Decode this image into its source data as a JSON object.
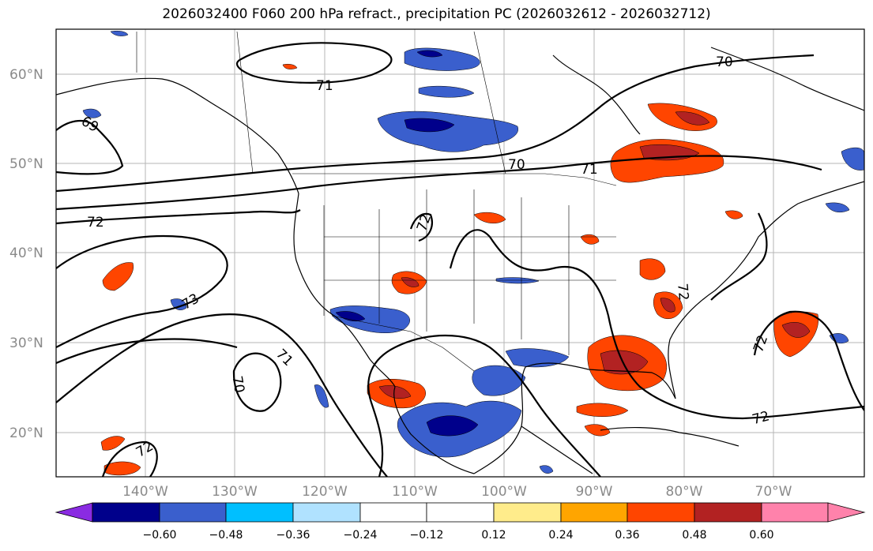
{
  "title": "2026032400 F060 200 hPa refract., precipitation PC (2026032612 - 2026032712)",
  "map": {
    "lat_ticks": [
      "60°N",
      "50°N",
      "40°N",
      "30°N",
      "20°N"
    ],
    "lon_ticks": [
      "140°W",
      "130°W",
      "120°W",
      "110°W",
      "100°W",
      "90°W",
      "80°W",
      "70°W"
    ],
    "contour_labels": [
      "71",
      "70",
      "69",
      "70",
      "71",
      "72",
      "72",
      "73",
      "71",
      "70",
      "72",
      "72",
      "72",
      "72"
    ]
  },
  "colorbar": {
    "colors": [
      "#8a2be2",
      "#00008b",
      "#3a5fcd",
      "#00bfff",
      "#b0e2ff",
      "#ffffff",
      "#ffec8b",
      "#ffa500",
      "#ff4500",
      "#b22222",
      "#ff82ab"
    ],
    "labels": [
      "−0.60",
      "−0.48",
      "−0.36",
      "−0.24",
      "−0.12",
      "0.12",
      "0.24",
      "0.36",
      "0.48",
      "0.60"
    ]
  }
}
